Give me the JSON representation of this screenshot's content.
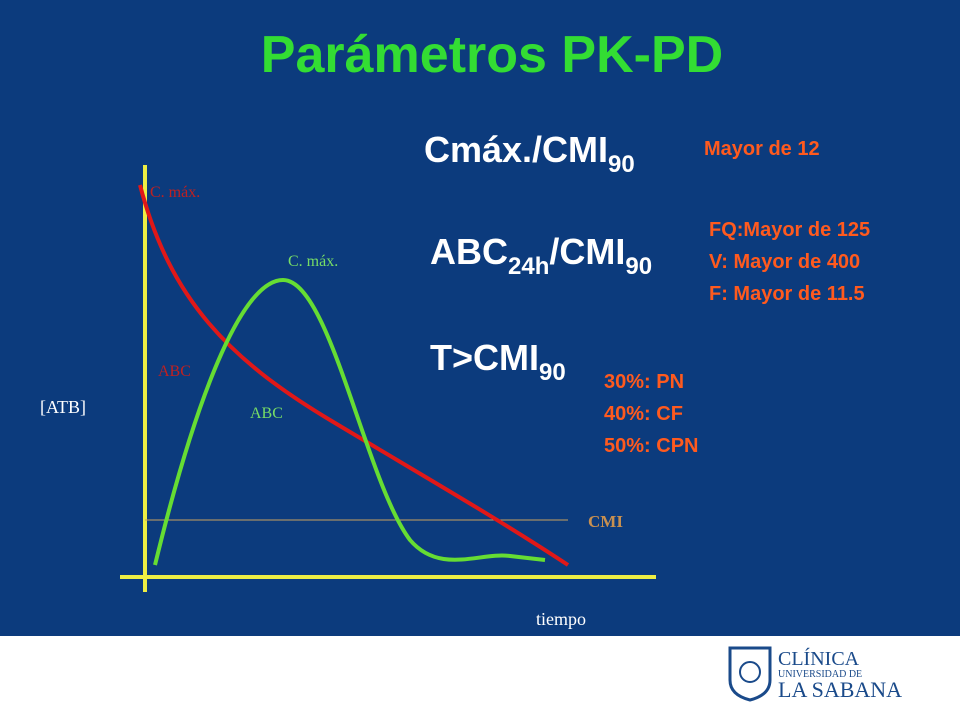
{
  "title": "Parámetros PK-PD",
  "params": [
    {
      "main": "Cmáx./CMI",
      "sub": "90",
      "notes": [
        "Mayor de 12"
      ]
    },
    {
      "main": "ABC",
      "sub": "24h",
      "main2": "/CMI",
      "sub2": "90",
      "notes": [
        "FQ:Mayor de 125",
        "V: Mayor de 400",
        "F: Mayor de 11.5"
      ]
    },
    {
      "main": "T>CMI",
      "sub": "90",
      "notes": [
        "30%: PN",
        "40%: CF",
        "50%: CPN"
      ]
    }
  ],
  "graph": {
    "red_cmax": "C. máx.",
    "green_cmax": "C. máx.",
    "red_abc": "ABC",
    "green_abc": "ABC",
    "y_axis": "[ATB]",
    "cmi": "CMI",
    "x_axis": "tiempo"
  },
  "logo": {
    "line1": "CLÍNICA",
    "line2": "UNIVERSIDAD DE",
    "line3": "LA SABANA"
  }
}
